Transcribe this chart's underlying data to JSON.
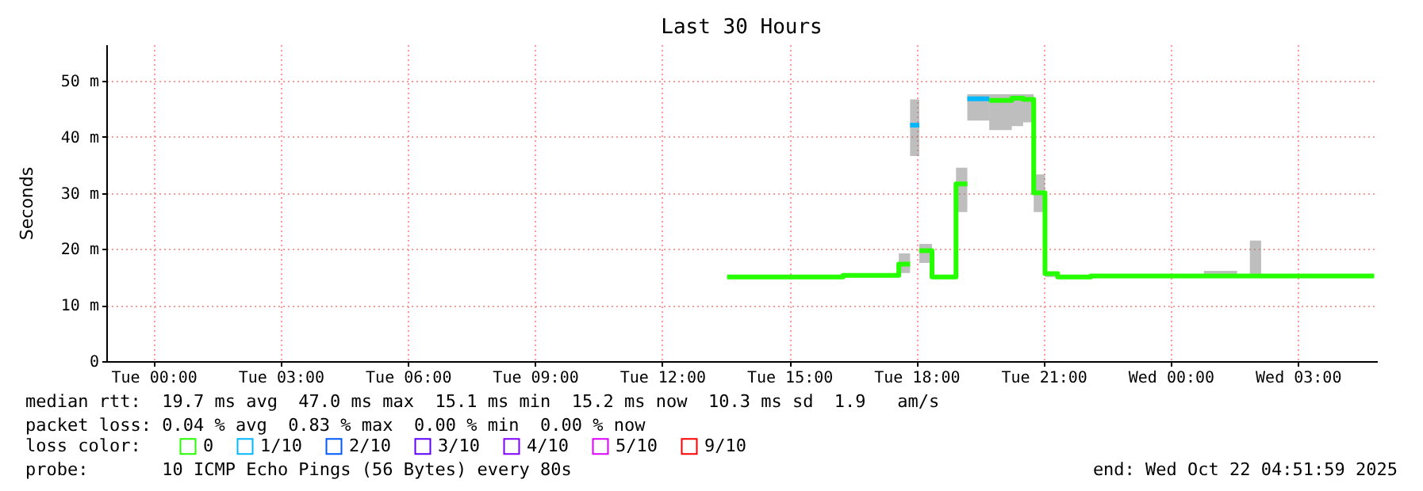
{
  "chart_data": {
    "type": "step",
    "title": "Last 30 Hours",
    "ylabel": "Seconds",
    "legend_title": "loss color:",
    "legend": "bottom left",
    "grid": true,
    "xlim": [
      "2025-10-20T22:53",
      "2025-10-22T04:52"
    ],
    "xticks": [
      {
        "value": "2025-10-21T00:00",
        "label": "Tue 00:00"
      },
      {
        "value": "2025-10-21T03:00",
        "label": "Tue 03:00"
      },
      {
        "value": "2025-10-21T06:00",
        "label": "Tue 06:00"
      },
      {
        "value": "2025-10-21T09:00",
        "label": "Tue 09:00"
      },
      {
        "value": "2025-10-21T12:00",
        "label": "Tue 12:00"
      },
      {
        "value": "2025-10-21T15:00",
        "label": "Tue 15:00"
      },
      {
        "value": "2025-10-21T18:00",
        "label": "Tue 18:00"
      },
      {
        "value": "2025-10-21T21:00",
        "label": "Tue 21:00"
      },
      {
        "value": "2025-10-22T00:00",
        "label": "Wed 00:00"
      },
      {
        "value": "2025-10-22T03:00",
        "label": "Wed 03:00"
      }
    ],
    "ylim": [
      0,
      56.5
    ],
    "yticks": [
      0,
      {
        "value": 10,
        "label": "10 m"
      },
      {
        "value": 20,
        "label": "20 m"
      },
      {
        "value": 30,
        "label": "30 m"
      },
      {
        "value": 40,
        "label": "40 m"
      },
      {
        "value": 50,
        "label": "50 m"
      }
    ],
    "series": [
      {
        "name": "0",
        "color": "#26ff00",
        "x": [
          "2025-10-21T13:32",
          "2025-10-21T16:16",
          "2025-10-21T17:35",
          "2025-10-21T17:51",
          "2025-10-21T17:52",
          "2025-10-21T18:04",
          "2025-10-21T18:22",
          "2025-10-21T18:56",
          "2025-10-21T19:12",
          "2025-10-21T19:13",
          "2025-10-21T19:43",
          "2025-10-21T20:15",
          "2025-10-21T20:31",
          "2025-10-21T20:46",
          "2025-10-21T21:02",
          "2025-10-21T21:20",
          "2025-10-21T22:07",
          "2025-10-22T00:47",
          "2025-10-22T01:34",
          "2025-10-22T01:52",
          "2025-10-22T02:08",
          "2025-10-22T04:48"
        ],
        "values": [
          15.0,
          15.3,
          17.3,
          17.3,
          null,
          19.7,
          15.0,
          31.6,
          31.6,
          null,
          46.5,
          46.9,
          46.7,
          30.0,
          15.6,
          15.0,
          15.2,
          15.2,
          15.2,
          15.2,
          15.2,
          15.2
        ],
        "lower": [
          14.9,
          15.0,
          15.7,
          15.7,
          null,
          17.5,
          14.9,
          26.6,
          26.6,
          null,
          41.2,
          41.9,
          42.6,
          26.6,
          15.0,
          14.9,
          15.0,
          15.0,
          15.0,
          15.0,
          15.0,
          15.0
        ],
        "upper": [
          15.2,
          15.5,
          19.2,
          19.2,
          null,
          20.9,
          15.2,
          34.5,
          34.5,
          null,
          47.6,
          47.6,
          47.6,
          33.3,
          15.9,
          15.2,
          15.4,
          16.1,
          15.4,
          21.5,
          15.4,
          15.4
        ]
      },
      {
        "name": "1/10",
        "color": "#00b8ff",
        "x": [
          "2025-10-21T17:51",
          "2025-10-21T18:04",
          "2025-10-21T18:05",
          "2025-10-21T19:12",
          "2025-10-21T19:43"
        ],
        "values": [
          42.1,
          42.1,
          null,
          46.8,
          46.8
        ],
        "lower": [
          36.6,
          36.6,
          null,
          42.9,
          42.9
        ],
        "upper": [
          46.7,
          46.7,
          null,
          47.6,
          47.6
        ]
      },
      {
        "name": "2/10",
        "color": "#0059ff"
      },
      {
        "name": "3/10",
        "color": "#5e00ff"
      },
      {
        "name": "4/10",
        "color": "#7e00ff"
      },
      {
        "name": "5/10",
        "color": "#dd00ff"
      },
      {
        "name": "9/10",
        "color": "#ff0000"
      }
    ],
    "annotations": [
      "median rtt:  19.7 ms avg  47.0 ms max  15.1 ms min  15.2 ms now  10.3 ms sd  1.9   am/s",
      "packet loss: 0.04 % avg  0.83 % max  0.00 % min  0.00 % now",
      "probe:       10 ICMP Echo Pings (56 Bytes) every 80s",
      "end: Wed Oct 22 04:51:59 2025"
    ]
  }
}
